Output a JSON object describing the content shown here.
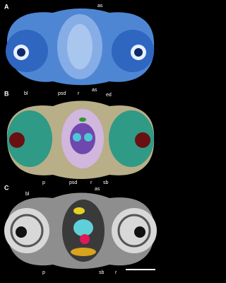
{
  "panels": [
    {
      "letter": "A",
      "labels": [
        "as"
      ]
    },
    {
      "letter": "B",
      "labels": [
        "bl",
        "psd",
        "r",
        "as",
        "ed",
        "p",
        "psd",
        "r",
        "sb"
      ]
    },
    {
      "letter": "C",
      "labels": [
        "bl",
        "as",
        "p",
        "sb",
        "r"
      ]
    }
  ]
}
